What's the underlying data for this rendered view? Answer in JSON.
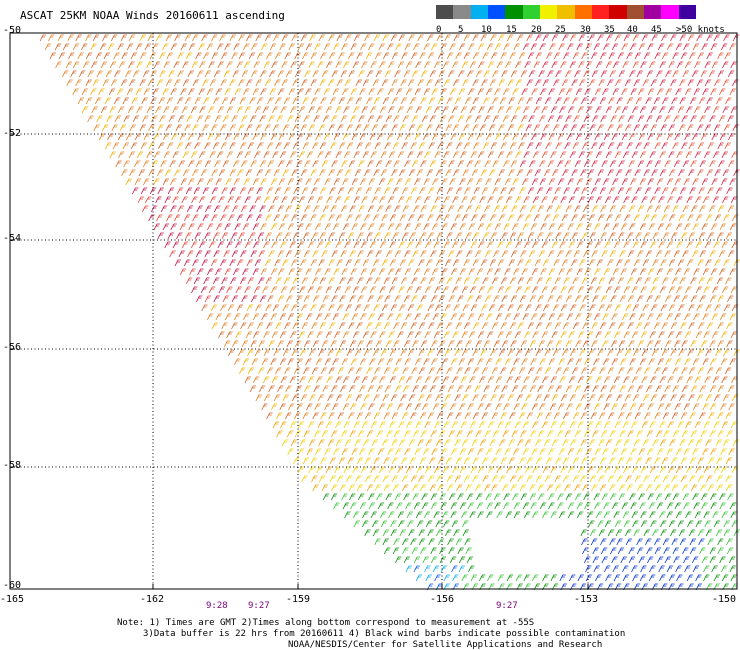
{
  "title": "ASCAT 25KM NOAA Winds 20160611 ascending",
  "legend": {
    "colors": [
      "#4d4d4d",
      "#8a8a8a",
      "#00b0f0",
      "#0050ff",
      "#009000",
      "#30d030",
      "#f0f000",
      "#f0c000",
      "#ff7000",
      "#ff2020",
      "#d00000",
      "#a05030",
      "#a000a0",
      "#ff00ff",
      "#4000a0"
    ],
    "labels": [
      "0",
      "5",
      "10",
      "15",
      "20",
      "25",
      "30",
      "35",
      "40",
      "45",
      ">50 knots"
    ]
  },
  "axes": {
    "lat_labels": [
      "-50",
      "-52",
      "-54",
      "-56",
      "-58",
      "-60"
    ],
    "lon_labels": [
      "-165",
      "-162",
      "-159",
      "-156",
      "-153",
      "-150"
    ]
  },
  "times": [
    "9:28",
    "9:27",
    "9:27"
  ],
  "notes": [
    "Note: 1) Times are GMT 2)Times along bottom correspond to measurement at -55S",
    "3)Data buffer is 22 hrs from 20160611 4) Black wind barbs indicate possible contamination",
    "NOAA/NESDIS/Center for Satellite Applications and Research"
  ]
}
